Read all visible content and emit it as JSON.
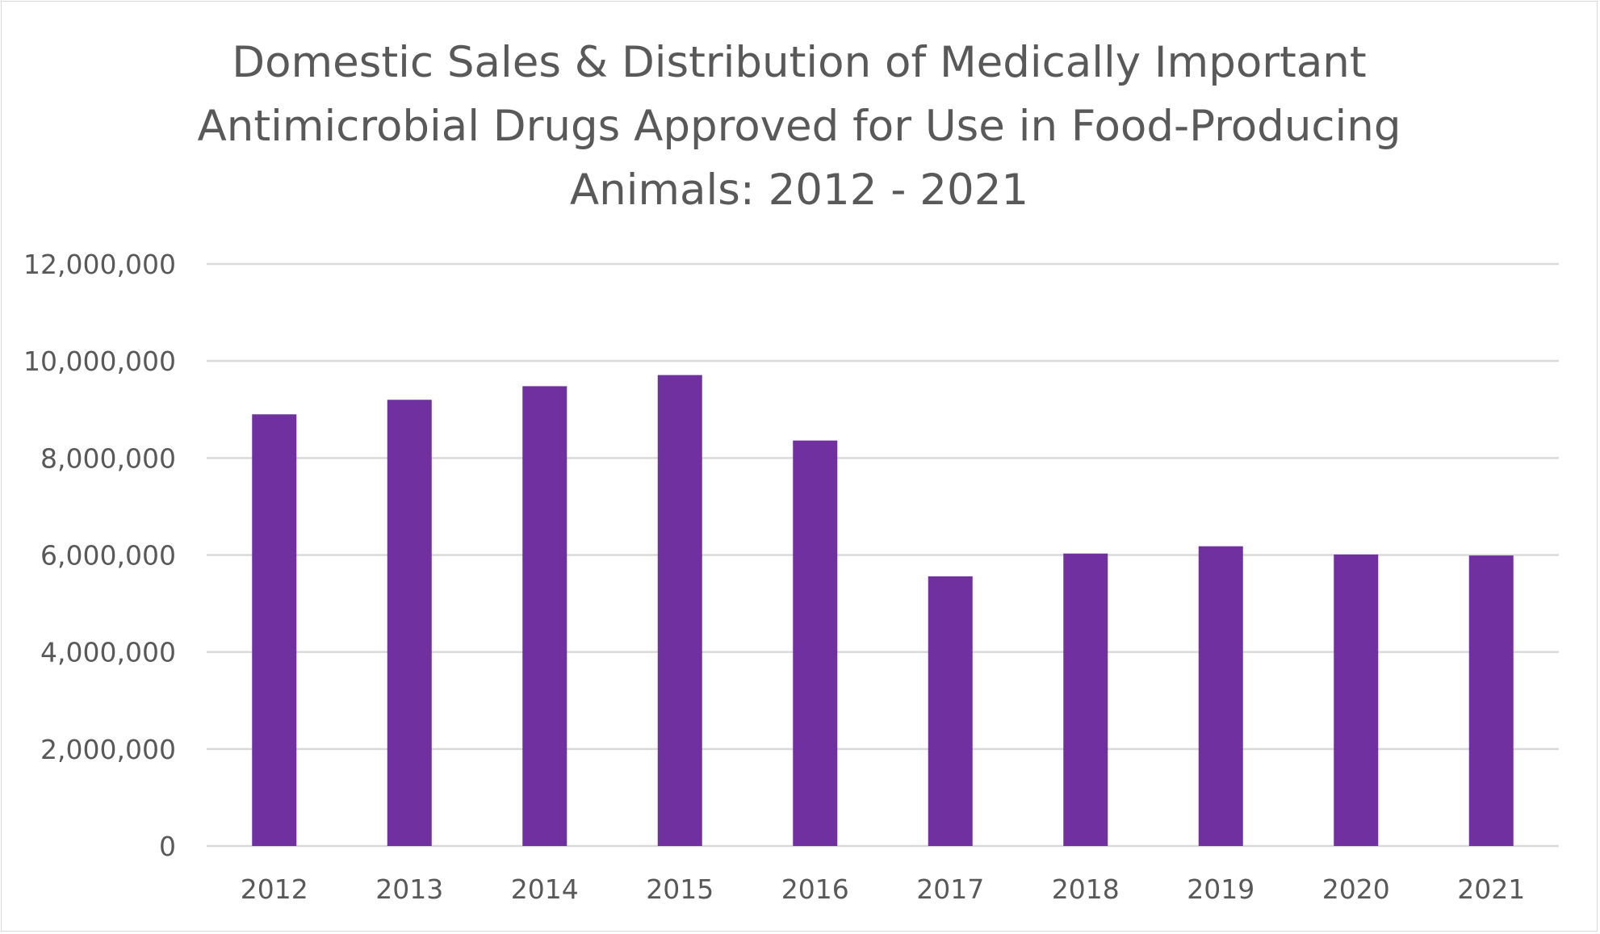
{
  "chart_data": {
    "type": "bar",
    "title": "Domestic Sales & Distribution of Medically Important Antimicrobial Drugs Approved for Use in Food-Producing Animals: 2012 - 2021",
    "title_lines": [
      "Domestic Sales & Distribution of Medically Important",
      "Antimicrobial Drugs Approved for Use in Food-Producing",
      "Animals: 2012 - 2021"
    ],
    "categories": [
      "2012",
      "2013",
      "2014",
      "2015",
      "2016",
      "2017",
      "2018",
      "2019",
      "2020",
      "2021"
    ],
    "values": [
      8900000,
      9200000,
      9480000,
      9710000,
      8360000,
      5560000,
      6030000,
      6180000,
      6010000,
      5990000
    ],
    "ylim": [
      0,
      12000000
    ],
    "yticks": [
      0,
      2000000,
      4000000,
      6000000,
      8000000,
      10000000,
      12000000
    ],
    "ytick_labels": [
      "0",
      "2,000,000",
      "4,000,000",
      "6,000,000",
      "8,000,000",
      "10,000,000",
      "12,000,000"
    ],
    "xlabel": "",
    "ylabel": "",
    "grid": true,
    "legend": "none",
    "bar_color": "#7030a0",
    "grid_color": "#d9d9d9",
    "text_color": "#595959"
  }
}
